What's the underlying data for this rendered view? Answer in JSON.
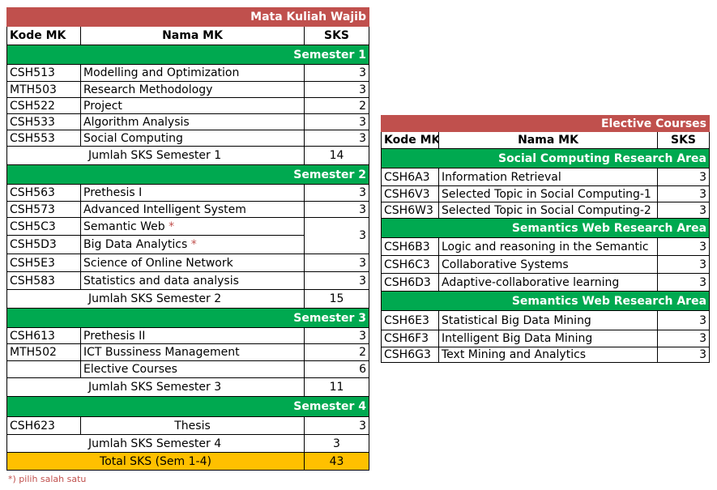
{
  "wajib": {
    "title": "Mata Kuliah Wajib",
    "col_code": "Kode MK",
    "col_name": "Nama MK",
    "col_sks": "SKS",
    "sem1": {
      "label": "Semester 1",
      "rows": [
        {
          "code": "CSH513",
          "name": "Modelling and Optimization",
          "sks": "3"
        },
        {
          "code": "MTH503",
          "name": "Research Methodology",
          "sks": "3"
        },
        {
          "code": "CSH522",
          "name": "Project",
          "sks": "2"
        },
        {
          "code": "CSH533",
          "name": "Algorithm Analysis",
          "sks": "3"
        },
        {
          "code": "CSH553",
          "name": "Social Computing",
          "sks": "3"
        }
      ],
      "sum_label": "Jumlah SKS Semester 1",
      "sum_value": "14"
    },
    "sem2": {
      "label": "Semester 2",
      "rows": [
        {
          "code": "CSH563",
          "name": "Prethesis I",
          "sks": "3"
        },
        {
          "code": "CSH573",
          "name": "Advanced Intelligent System",
          "sks": "3"
        },
        {
          "code": "CSH5C3",
          "name": "Semantic Web",
          "star": "*",
          "sks": "3"
        },
        {
          "code": "CSH5D3",
          "name": "Big Data Analytics",
          "star": "*"
        },
        {
          "code": "CSH5E3",
          "name": "Science of Online Network",
          "sks": "3"
        },
        {
          "code": "CSH583",
          "name": "Statistics and data analysis",
          "sks": "3"
        }
      ],
      "sum_label": "Jumlah SKS Semester 2",
      "sum_value": "15"
    },
    "sem3": {
      "label": "Semester 3",
      "rows": [
        {
          "code": "CSH613",
          "name": "Prethesis II",
          "sks": "3"
        },
        {
          "code": "MTH502",
          "name": "ICT Bussiness Management",
          "sks": "2"
        },
        {
          "code": "",
          "name": "Elective Courses",
          "sks": "6"
        }
      ],
      "sum_label": "Jumlah SKS Semester 3",
      "sum_value": "11"
    },
    "sem4": {
      "label": "Semester 4",
      "rows": [
        {
          "code": "CSH623",
          "name": "Thesis",
          "sks": "3"
        }
      ],
      "sum_label": "Jumlah SKS Semester 4",
      "sum_value": "3"
    },
    "total_label": "Total SKS (Sem 1-4)",
    "total_value": "43",
    "footnote": "*) pilih salah satu"
  },
  "elective": {
    "title": "Elective Courses",
    "col_code": "Kode MK",
    "col_name": "Nama MK",
    "col_sks": "SKS",
    "area1": {
      "label": "Social Computing  Research Area",
      "rows": [
        {
          "code": "CSH6A3",
          "name": "Information Retrieval",
          "sks": "3"
        },
        {
          "code": "CSH6V3",
          "name": "Selected Topic in Social Computing-1",
          "sks": "3"
        },
        {
          "code": "CSH6W3",
          "name": "Selected Topic in Social Computing-2",
          "sks": "3"
        }
      ]
    },
    "area2": {
      "label": "Semantics Web Research Area",
      "rows": [
        {
          "code": "CSH6B3",
          "name": "Logic and reasoning in the Semantic",
          "sks": "3"
        },
        {
          "code": "CSH6C3",
          "name": "Collaborative Systems",
          "sks": "3"
        },
        {
          "code": "CSH6D3",
          "name": "Adaptive-collaborative learning",
          "sks": "3"
        }
      ]
    },
    "area3": {
      "label": "Semantics Web Research Area",
      "rows": [
        {
          "code": "CSH6E3",
          "name": "Statistical Big Data Mining",
          "sks": "3"
        },
        {
          "code": "CSH6F3",
          "name": "Intelligent Big Data Mining",
          "sks": "3"
        },
        {
          "code": "CSH6G3",
          "name": "Text Mining and Analytics",
          "sks": "3"
        }
      ]
    }
  },
  "colors": {
    "title_bg": "#c0504d",
    "semester_bg": "#00a950",
    "total_bg": "#ffc000",
    "star": "#c0504d"
  }
}
